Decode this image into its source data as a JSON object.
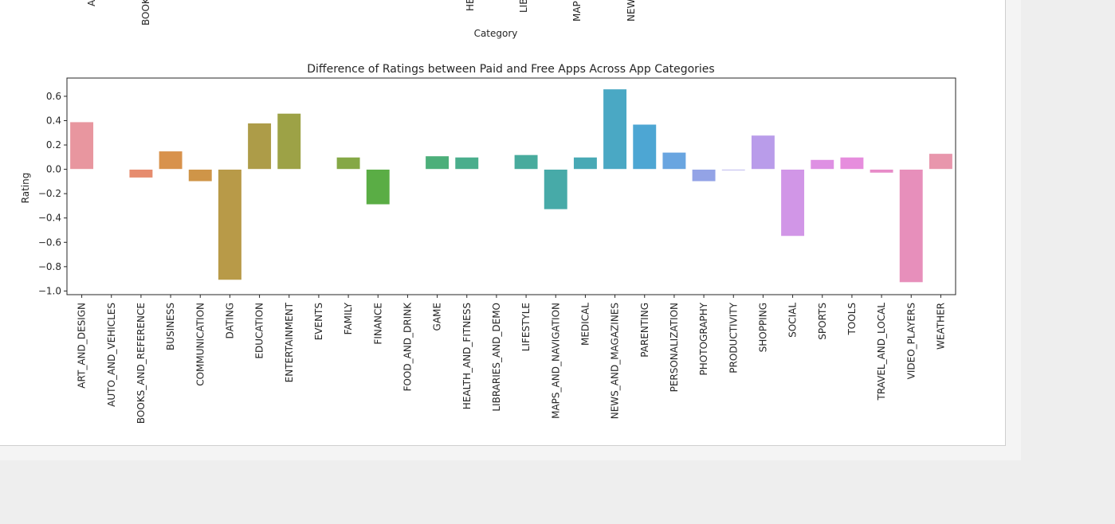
{
  "previous_chart": {
    "xlabel": "Category",
    "partial_tick_labels": [
      "AI",
      "BOOK",
      "HE",
      "LIB",
      "MAP",
      "NEW"
    ]
  },
  "chart_data": {
    "type": "bar",
    "title": "Difference of Ratings between Paid and Free Apps Across App Categories",
    "xlabel": "",
    "ylabel": "Rating",
    "ylim": [
      -1.03,
      0.75
    ],
    "yticks": [
      0.6,
      0.4,
      0.2,
      0.0,
      -0.2,
      -0.4,
      -0.6,
      -0.8,
      -1.0
    ],
    "ytick_labels": [
      "0.6",
      "0.4",
      "0.2",
      "0.0",
      "−0.2",
      "−0.4",
      "−0.6",
      "−0.8",
      "−1.0"
    ],
    "grid": false,
    "categories": [
      "ART_AND_DESIGN",
      "AUTO_AND_VEHICLES",
      "BOOKS_AND_REFERENCE",
      "BUSINESS",
      "COMMUNICATION",
      "DATING",
      "EDUCATION",
      "ENTERTAINMENT",
      "EVENTS",
      "FAMILY",
      "FINANCE",
      "FOOD_AND_DRINK",
      "GAME",
      "HEALTH_AND_FITNESS",
      "LIBRARIES_AND_DEMO",
      "LIFESTYLE",
      "MAPS_AND_NAVIGATION",
      "MEDICAL",
      "NEWS_AND_MAGAZINES",
      "PARENTING",
      "PERSONALIZATION",
      "PHOTOGRAPHY",
      "PRODUCTIVITY",
      "SHOPPING",
      "SOCIAL",
      "SPORTS",
      "TOOLS",
      "TRAVEL_AND_LOCAL",
      "VIDEO_PLAYERS",
      "WEATHER"
    ],
    "values": [
      0.39,
      0,
      -0.07,
      0.15,
      -0.1,
      -0.91,
      0.38,
      0.46,
      0,
      0.1,
      -0.29,
      0,
      0.11,
      0.1,
      0,
      0.12,
      -0.33,
      0.1,
      0.66,
      0.37,
      0.14,
      -0.1,
      -0.01,
      0.28,
      -0.55,
      0.08,
      0.1,
      -0.03,
      -0.93,
      0.13
    ],
    "colors": [
      "#e8969f",
      "#e8908a",
      "#e68c6e",
      "#d8924c",
      "#cf9548",
      "#b89a48",
      "#ad9c48",
      "#9da246",
      "#8ea646",
      "#85a846",
      "#5aad45",
      "#4caf60",
      "#4caf7a",
      "#4aae8c",
      "#49ad96",
      "#48ab9d",
      "#47aaa8",
      "#48a9b5",
      "#4aa8c4",
      "#4da6d3",
      "#69a5e0",
      "#93a3e6",
      "#a7a0e8",
      "#b99cea",
      "#d196e7",
      "#de90e3",
      "#e68ddd",
      "#e78cc8",
      "#e78fbb",
      "#e896ac"
    ]
  }
}
